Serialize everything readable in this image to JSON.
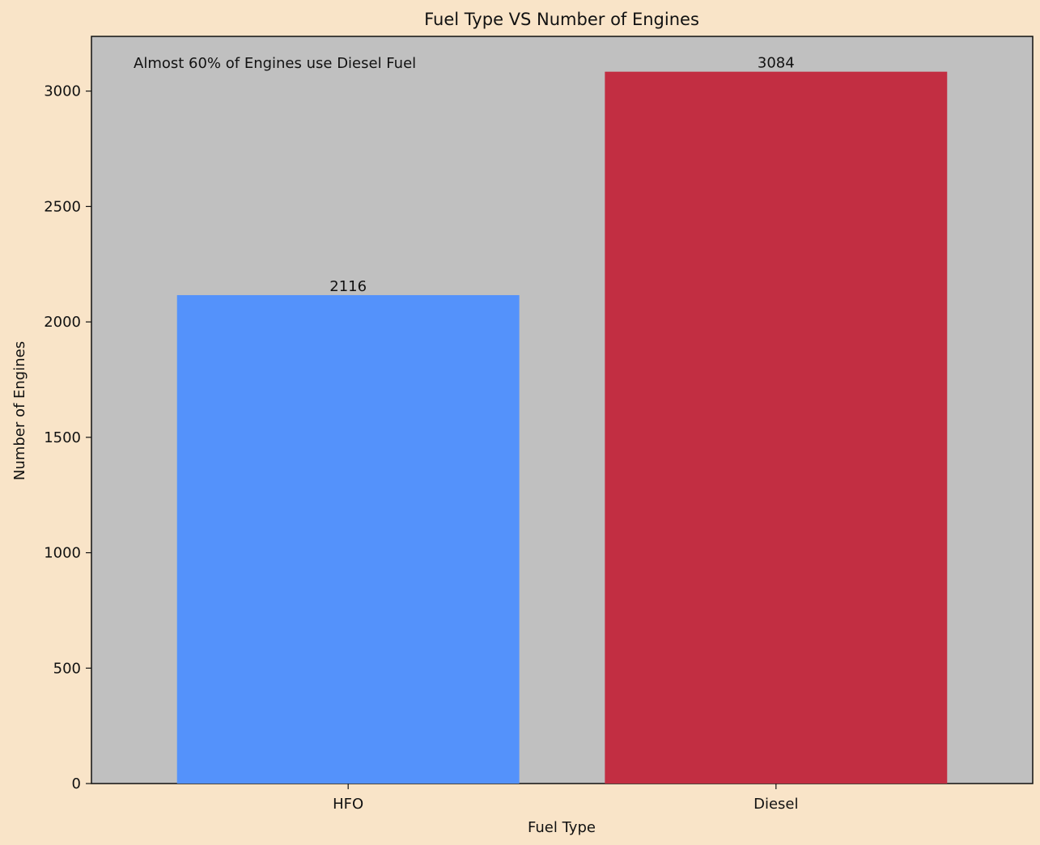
{
  "chart_data": {
    "type": "bar",
    "title": "Fuel Type VS Number of Engines",
    "xlabel": "Fuel Type",
    "ylabel": "Number of Engines",
    "categories": [
      "HFO",
      "Diesel"
    ],
    "values": [
      2116,
      3084
    ],
    "value_labels": [
      "2116",
      "3084"
    ],
    "bar_colors": [
      "#5492fb",
      "#c22e42"
    ],
    "annotation": "Almost 60% of Engines use Diesel Fuel",
    "ylim": [
      0,
      3237
    ],
    "yticks": [
      0,
      500,
      1000,
      1500,
      2000,
      2500,
      3000
    ],
    "ytick_labels": [
      "0",
      "500",
      "1000",
      "1500",
      "2000",
      "2500",
      "3000"
    ],
    "grid": false,
    "colors": {
      "figure_background": "#f9e4c8",
      "plot_background": "#c0c0c0",
      "axis": "#111111"
    }
  }
}
